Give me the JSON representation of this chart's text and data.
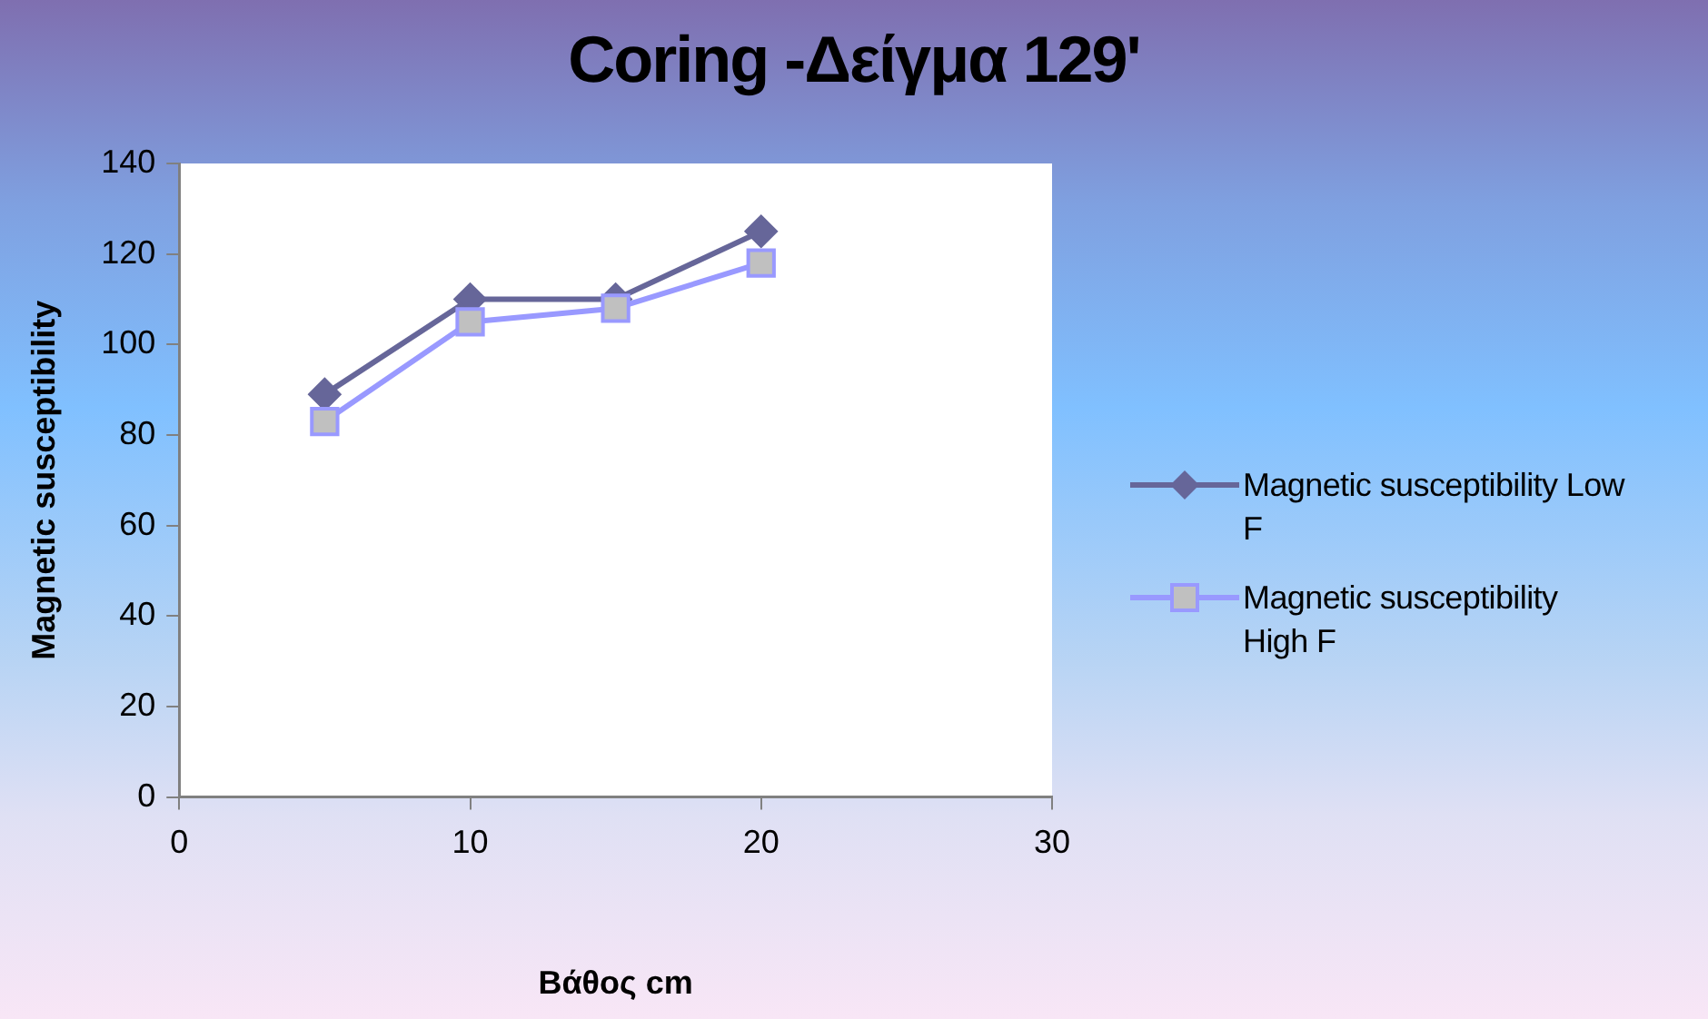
{
  "chart_data": {
    "type": "line",
    "title": "Coring -Δείγμα 129'",
    "xlabel": "Βάθος cm",
    "ylabel": "Magnetic susceptibility",
    "x": [
      5,
      10,
      15,
      20
    ],
    "series": [
      {
        "name": "Magnetic susceptibility Low F",
        "color": "#666699",
        "values": [
          89,
          110,
          110,
          125
        ],
        "marker": "diamond"
      },
      {
        "name": "Magnetic susceptibility High F",
        "color": "#9999ff",
        "values": [
          83,
          105,
          108,
          118
        ],
        "marker": "square"
      }
    ],
    "xlim": [
      0,
      30
    ],
    "xticks": [
      0,
      10,
      20,
      30
    ],
    "ylim": [
      0,
      140
    ],
    "yticks": [
      0,
      20,
      40,
      60,
      80,
      100,
      120,
      140
    ],
    "grid": false,
    "legend": "right"
  }
}
